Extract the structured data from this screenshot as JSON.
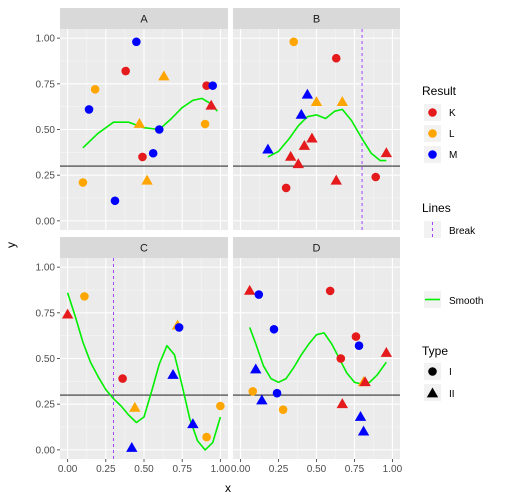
{
  "chart_data": {
    "type": "scatter",
    "xlabel": "x",
    "ylabel": "y",
    "xlim": [
      -0.05,
      1.05
    ],
    "ylim": [
      -0.05,
      1.05
    ],
    "x_ticks": [
      0.0,
      0.25,
      0.5,
      0.75,
      1.0
    ],
    "x_tick_labels": [
      "0.00",
      "0.25",
      "0.50",
      "0.75",
      "1.00"
    ],
    "y_ticks": [
      0.0,
      0.25,
      0.5,
      0.75,
      1.0
    ],
    "y_tick_labels": [
      "0.00",
      "0.25",
      "0.50",
      "0.75",
      "1.00"
    ],
    "grid": true,
    "hline": 0.3,
    "colors": {
      "K": "#e41a1c",
      "L": "#ffa500",
      "M": "#0000ff",
      "smooth": "#00ee00",
      "break": "#9b30ff",
      "hline": "#000000"
    },
    "facets": [
      {
        "label": "A",
        "vline": null,
        "points": [
          {
            "x": 0.1,
            "y": 0.21,
            "result": "L",
            "type": "I"
          },
          {
            "x": 0.14,
            "y": 0.61,
            "result": "M",
            "type": "I"
          },
          {
            "x": 0.18,
            "y": 0.72,
            "result": "L",
            "type": "I"
          },
          {
            "x": 0.31,
            "y": 0.11,
            "result": "M",
            "type": "I"
          },
          {
            "x": 0.38,
            "y": 0.82,
            "result": "K",
            "type": "I"
          },
          {
            "x": 0.45,
            "y": 0.98,
            "result": "M",
            "type": "I"
          },
          {
            "x": 0.47,
            "y": 0.53,
            "result": "L",
            "type": "II"
          },
          {
            "x": 0.49,
            "y": 0.35,
            "result": "K",
            "type": "I"
          },
          {
            "x": 0.52,
            "y": 0.22,
            "result": "L",
            "type": "II"
          },
          {
            "x": 0.56,
            "y": 0.37,
            "result": "M",
            "type": "I"
          },
          {
            "x": 0.6,
            "y": 0.5,
            "result": "M",
            "type": "I"
          },
          {
            "x": 0.63,
            "y": 0.79,
            "result": "L",
            "type": "II"
          },
          {
            "x": 0.9,
            "y": 0.53,
            "result": "L",
            "type": "I"
          },
          {
            "x": 0.91,
            "y": 0.74,
            "result": "K",
            "type": "I"
          },
          {
            "x": 0.94,
            "y": 0.63,
            "result": "K",
            "type": "II"
          },
          {
            "x": 0.95,
            "y": 0.74,
            "result": "M",
            "type": "I"
          }
        ],
        "smooth": [
          [
            0.1,
            0.4
          ],
          [
            0.2,
            0.48
          ],
          [
            0.3,
            0.54
          ],
          [
            0.4,
            0.54
          ],
          [
            0.5,
            0.51
          ],
          [
            0.6,
            0.5
          ],
          [
            0.68,
            0.56
          ],
          [
            0.75,
            0.62
          ],
          [
            0.82,
            0.66
          ],
          [
            0.88,
            0.67
          ],
          [
            0.94,
            0.64
          ],
          [
            0.98,
            0.6
          ]
        ]
      },
      {
        "label": "B",
        "vline": 0.8,
        "points": [
          {
            "x": 0.18,
            "y": 0.39,
            "result": "M",
            "type": "II"
          },
          {
            "x": 0.3,
            "y": 0.18,
            "result": "K",
            "type": "I"
          },
          {
            "x": 0.33,
            "y": 0.35,
            "result": "K",
            "type": "II"
          },
          {
            "x": 0.35,
            "y": 0.98,
            "result": "L",
            "type": "I"
          },
          {
            "x": 0.38,
            "y": 0.31,
            "result": "K",
            "type": "II"
          },
          {
            "x": 0.4,
            "y": 0.58,
            "result": "M",
            "type": "II"
          },
          {
            "x": 0.42,
            "y": 0.41,
            "result": "K",
            "type": "II"
          },
          {
            "x": 0.44,
            "y": 0.69,
            "result": "M",
            "type": "II"
          },
          {
            "x": 0.47,
            "y": 0.45,
            "result": "K",
            "type": "II"
          },
          {
            "x": 0.5,
            "y": 0.65,
            "result": "L",
            "type": "II"
          },
          {
            "x": 0.63,
            "y": 0.89,
            "result": "K",
            "type": "I"
          },
          {
            "x": 0.63,
            "y": 0.22,
            "result": "K",
            "type": "II"
          },
          {
            "x": 0.67,
            "y": 0.65,
            "result": "L",
            "type": "II"
          },
          {
            "x": 0.89,
            "y": 0.24,
            "result": "K",
            "type": "I"
          },
          {
            "x": 0.96,
            "y": 0.37,
            "result": "K",
            "type": "II"
          }
        ],
        "smooth": [
          [
            0.18,
            0.35
          ],
          [
            0.25,
            0.38
          ],
          [
            0.32,
            0.45
          ],
          [
            0.38,
            0.52
          ],
          [
            0.44,
            0.57
          ],
          [
            0.5,
            0.58
          ],
          [
            0.56,
            0.56
          ],
          [
            0.62,
            0.6
          ],
          [
            0.67,
            0.61
          ],
          [
            0.73,
            0.55
          ],
          [
            0.8,
            0.45
          ],
          [
            0.86,
            0.37
          ],
          [
            0.92,
            0.33
          ],
          [
            0.96,
            0.33
          ]
        ]
      },
      {
        "label": "C",
        "vline": 0.3,
        "points": [
          {
            "x": 0.0,
            "y": 0.74,
            "result": "K",
            "type": "II"
          },
          {
            "x": 0.11,
            "y": 0.84,
            "result": "L",
            "type": "I"
          },
          {
            "x": 0.36,
            "y": 0.39,
            "result": "K",
            "type": "I"
          },
          {
            "x": 0.42,
            "y": 0.01,
            "result": "M",
            "type": "II"
          },
          {
            "x": 0.44,
            "y": 0.23,
            "result": "L",
            "type": "II"
          },
          {
            "x": 0.69,
            "y": 0.41,
            "result": "M",
            "type": "II"
          },
          {
            "x": 0.72,
            "y": 0.68,
            "result": "L",
            "type": "II"
          },
          {
            "x": 0.73,
            "y": 0.67,
            "result": "M",
            "type": "I"
          },
          {
            "x": 0.82,
            "y": 0.14,
            "result": "M",
            "type": "II"
          },
          {
            "x": 0.91,
            "y": 0.07,
            "result": "L",
            "type": "I"
          },
          {
            "x": 1.0,
            "y": 0.24,
            "result": "L",
            "type": "I"
          }
        ],
        "smooth": [
          [
            0.0,
            0.86
          ],
          [
            0.05,
            0.73
          ],
          [
            0.1,
            0.59
          ],
          [
            0.15,
            0.48
          ],
          [
            0.2,
            0.4
          ],
          [
            0.25,
            0.33
          ],
          [
            0.3,
            0.28
          ],
          [
            0.35,
            0.24
          ],
          [
            0.4,
            0.19
          ],
          [
            0.45,
            0.15
          ],
          [
            0.5,
            0.18
          ],
          [
            0.55,
            0.32
          ],
          [
            0.6,
            0.47
          ],
          [
            0.65,
            0.57
          ],
          [
            0.7,
            0.52
          ],
          [
            0.75,
            0.35
          ],
          [
            0.8,
            0.17
          ],
          [
            0.85,
            0.05
          ],
          [
            0.9,
            0.0
          ],
          [
            0.95,
            0.04
          ],
          [
            1.0,
            0.18
          ]
        ]
      },
      {
        "label": "D",
        "vline": null,
        "points": [
          {
            "x": 0.06,
            "y": 0.87,
            "result": "K",
            "type": "II"
          },
          {
            "x": 0.08,
            "y": 0.32,
            "result": "L",
            "type": "I"
          },
          {
            "x": 0.1,
            "y": 0.44,
            "result": "M",
            "type": "II"
          },
          {
            "x": 0.12,
            "y": 0.85,
            "result": "M",
            "type": "I"
          },
          {
            "x": 0.14,
            "y": 0.27,
            "result": "M",
            "type": "II"
          },
          {
            "x": 0.22,
            "y": 0.66,
            "result": "M",
            "type": "I"
          },
          {
            "x": 0.24,
            "y": 0.31,
            "result": "M",
            "type": "I"
          },
          {
            "x": 0.28,
            "y": 0.22,
            "result": "L",
            "type": "I"
          },
          {
            "x": 0.59,
            "y": 0.87,
            "result": "K",
            "type": "I"
          },
          {
            "x": 0.66,
            "y": 0.5,
            "result": "L",
            "type": "I"
          },
          {
            "x": 0.66,
            "y": 0.5,
            "result": "K",
            "type": "I"
          },
          {
            "x": 0.67,
            "y": 0.25,
            "result": "K",
            "type": "II"
          },
          {
            "x": 0.76,
            "y": 0.62,
            "result": "K",
            "type": "I"
          },
          {
            "x": 0.78,
            "y": 0.57,
            "result": "M",
            "type": "I"
          },
          {
            "x": 0.79,
            "y": 0.18,
            "result": "M",
            "type": "II"
          },
          {
            "x": 0.81,
            "y": 0.37,
            "result": "L",
            "type": "II"
          },
          {
            "x": 0.81,
            "y": 0.1,
            "result": "M",
            "type": "II"
          },
          {
            "x": 0.82,
            "y": 0.37,
            "result": "K",
            "type": "II"
          },
          {
            "x": 0.96,
            "y": 0.53,
            "result": "K",
            "type": "II"
          }
        ],
        "smooth": [
          [
            0.06,
            0.67
          ],
          [
            0.1,
            0.58
          ],
          [
            0.15,
            0.46
          ],
          [
            0.2,
            0.39
          ],
          [
            0.25,
            0.37
          ],
          [
            0.3,
            0.39
          ],
          [
            0.35,
            0.45
          ],
          [
            0.4,
            0.52
          ],
          [
            0.45,
            0.58
          ],
          [
            0.5,
            0.63
          ],
          [
            0.55,
            0.64
          ],
          [
            0.6,
            0.58
          ],
          [
            0.65,
            0.5
          ],
          [
            0.7,
            0.42
          ],
          [
            0.75,
            0.37
          ],
          [
            0.8,
            0.36
          ],
          [
            0.85,
            0.37
          ],
          [
            0.9,
            0.41
          ],
          [
            0.96,
            0.48
          ]
        ]
      }
    ],
    "legend": {
      "placement": "right",
      "result": {
        "title": "Result",
        "items": [
          "K",
          "L",
          "M"
        ]
      },
      "lines": {
        "title": "Lines",
        "items": [
          "Break",
          "Smooth"
        ]
      },
      "type": {
        "title": "Type",
        "items": [
          "I",
          "II"
        ]
      }
    }
  }
}
